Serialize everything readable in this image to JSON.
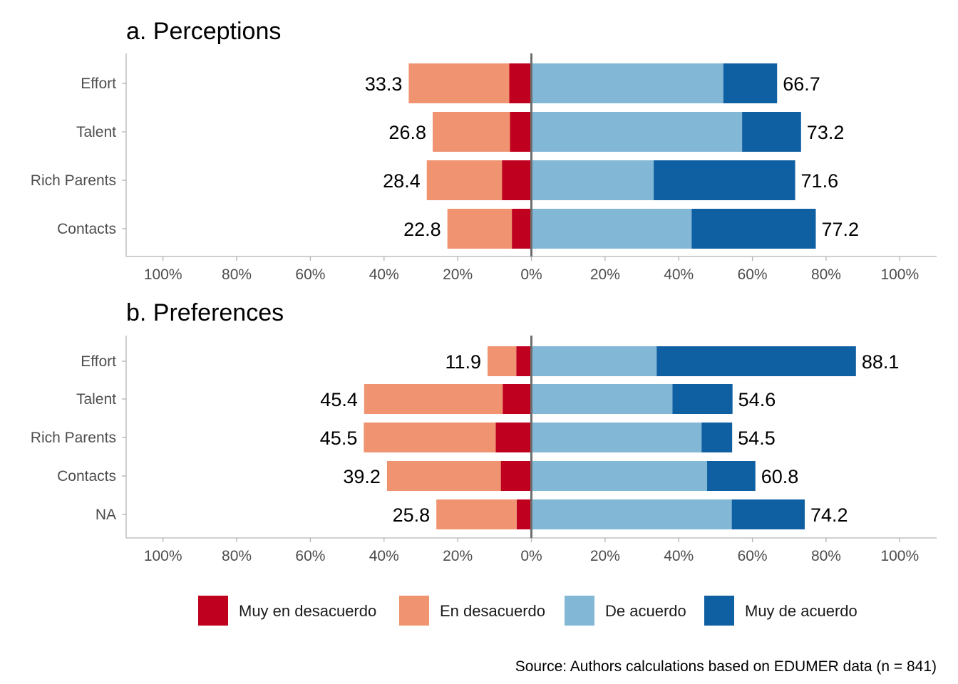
{
  "chart_data": [
    {
      "type": "bar",
      "orientation": "horizontal",
      "stacking": "diverging",
      "title": "a. Perceptions",
      "categories": [
        "Effort",
        "Talent",
        "Rich Parents",
        "Contacts"
      ],
      "series": [
        {
          "name": "Muy en desacuerdo",
          "side": "negative",
          "values": [
            6.0,
            5.8,
            8.0,
            5.3
          ]
        },
        {
          "name": "En desacuerdo",
          "side": "negative",
          "values": [
            27.3,
            21.0,
            20.4,
            17.5
          ]
        },
        {
          "name": "De acuerdo",
          "side": "positive",
          "values": [
            52.1,
            57.2,
            33.2,
            43.5
          ]
        },
        {
          "name": "Muy de acuerdo",
          "side": "positive",
          "values": [
            14.6,
            16.0,
            38.4,
            33.7
          ]
        }
      ],
      "negative_totals": [
        33.3,
        26.8,
        28.4,
        22.8
      ],
      "positive_totals": [
        66.7,
        73.2,
        71.6,
        77.2
      ],
      "negative_total_labels": [
        "33.3",
        "26.8",
        "28.4",
        "22.8"
      ],
      "positive_total_labels": [
        "66.7",
        "73.2",
        "71.6",
        "77.2"
      ],
      "xlim": [
        -110,
        110
      ],
      "xticks": [
        -100,
        -80,
        -60,
        -40,
        -20,
        0,
        20,
        40,
        60,
        80,
        100
      ],
      "xtick_labels": [
        "100%",
        "80%",
        "60%",
        "40%",
        "20%",
        "0%",
        "20%",
        "40%",
        "60%",
        "80%",
        "100%"
      ],
      "xlabel": "",
      "ylabel": "",
      "grid": false
    },
    {
      "type": "bar",
      "orientation": "horizontal",
      "stacking": "diverging",
      "title": "b. Preferences",
      "categories": [
        "Effort",
        "Talent",
        "Rich Parents",
        "Contacts",
        "NA"
      ],
      "series": [
        {
          "name": "Muy en desacuerdo",
          "side": "negative",
          "values": [
            4.1,
            7.8,
            9.7,
            8.3,
            4.0
          ]
        },
        {
          "name": "En desacuerdo",
          "side": "negative",
          "values": [
            7.8,
            37.6,
            35.8,
            30.9,
            21.8
          ]
        },
        {
          "name": "De acuerdo",
          "side": "positive",
          "values": [
            34.0,
            38.3,
            46.2,
            47.7,
            54.4
          ]
        },
        {
          "name": "Muy de acuerdo",
          "side": "positive",
          "values": [
            54.1,
            16.3,
            8.3,
            13.1,
            19.8
          ]
        }
      ],
      "negative_totals": [
        11.9,
        45.4,
        45.5,
        39.2,
        25.8
      ],
      "positive_totals": [
        88.1,
        54.6,
        54.5,
        60.8,
        74.2
      ],
      "negative_total_labels": [
        "11.9",
        "45.4",
        "45.5",
        "39.2",
        "25.8"
      ],
      "positive_total_labels": [
        "88.1",
        "54.6",
        "54.5",
        "60.8",
        "74.2"
      ],
      "xlim": [
        -110,
        110
      ],
      "xticks": [
        -100,
        -80,
        -60,
        -40,
        -20,
        0,
        20,
        40,
        60,
        80,
        100
      ],
      "xtick_labels": [
        "100%",
        "80%",
        "60%",
        "40%",
        "20%",
        "0%",
        "20%",
        "40%",
        "60%",
        "80%",
        "100%"
      ],
      "xlabel": "",
      "ylabel": "",
      "grid": false
    }
  ],
  "legend": {
    "position": "bottom",
    "items": [
      {
        "label": "Muy en desacuerdo",
        "color": "#c0001f"
      },
      {
        "label": "En desacuerdo",
        "color": "#ef9370"
      },
      {
        "label": "De acuerdo",
        "color": "#82b7d6"
      },
      {
        "label": "Muy de acuerdo",
        "color": "#0f5fa3"
      }
    ]
  },
  "colors": {
    "muy_en_desacuerdo": "#c0001f",
    "en_desacuerdo": "#ef9370",
    "de_acuerdo": "#82b7d6",
    "muy_de_acuerdo": "#0f5fa3",
    "zero_line": "#6e6e6e",
    "axis": "#b3b3b3"
  },
  "caption": "Source: Authors calculations based on EDUMER data (n = 841)"
}
